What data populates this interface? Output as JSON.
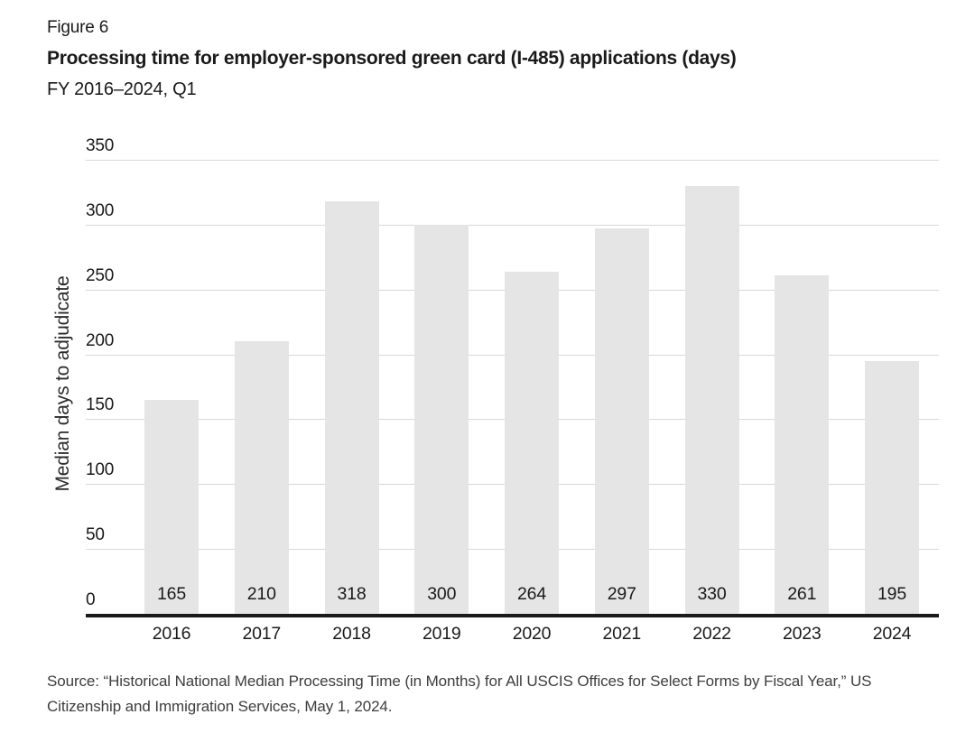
{
  "figure_label": "Figure 6",
  "title": "Processing time for employer-sponsored green card (I-485) applications (days)",
  "subtitle": "FY 2016–2024, Q1",
  "source": "Source: “Historical National Median Processing Time (in Months) for All USCIS Offices for Select Forms by Fiscal Year,” US Citizenship and Immigration Services, May 1, 2024.",
  "chart_data": {
    "type": "bar",
    "categories": [
      "2016",
      "2017",
      "2018",
      "2019",
      "2020",
      "2021",
      "2022",
      "2023",
      "2024"
    ],
    "values": [
      165,
      210,
      318,
      300,
      264,
      297,
      330,
      261,
      195
    ],
    "title": "Processing time for employer-sponsored green card (I-485) applications (days)",
    "xlabel": "",
    "ylabel": "Median days to adjudicate",
    "ylim": [
      0,
      350
    ],
    "yticks": [
      0,
      50,
      100,
      150,
      200,
      250,
      300,
      350
    ],
    "grid": "horizontal",
    "value_label_position": "inside-bottom",
    "legend": "none"
  },
  "colors": {
    "bar_fill": "#e5e5e5",
    "gridline": "#d8d8d8",
    "axis": "#1a1a1a",
    "text": "#1a1a1a",
    "source_text": "#3d3d3d",
    "background": "#ffffff"
  }
}
